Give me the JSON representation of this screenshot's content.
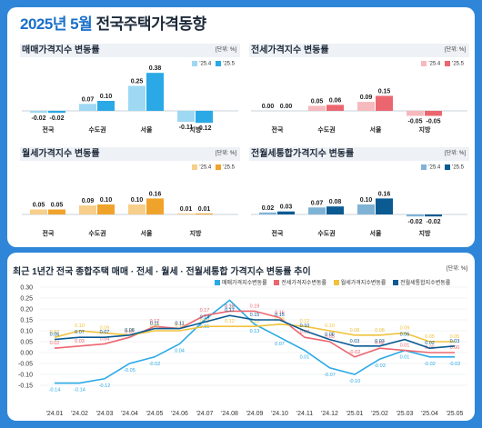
{
  "header": {
    "title_year_month": "2025년 5월",
    "title_rest": " 전국주택가격동향"
  },
  "chart_data": [
    {
      "type": "bar",
      "title": "매매가격지수 변동률",
      "unit": "[단위: %]",
      "categories": [
        "전국",
        "수도권",
        "서울",
        "지방"
      ],
      "series": [
        {
          "name": "'25.4",
          "values": [
            -0.02,
            0.07,
            0.25,
            -0.11
          ]
        },
        {
          "name": "'25.5",
          "values": [
            -0.02,
            0.1,
            0.38,
            -0.12
          ]
        }
      ],
      "colors": [
        "#9fd8f3",
        "#2aa9e6"
      ]
    },
    {
      "type": "bar",
      "title": "전세가격지수 변동률",
      "unit": "[단위: %]",
      "categories": [
        "전국",
        "수도권",
        "서울",
        "지방"
      ],
      "series": [
        {
          "name": "'25.4",
          "values": [
            0.0,
            0.05,
            0.09,
            -0.05
          ]
        },
        {
          "name": "'25.5",
          "values": [
            0.0,
            0.06,
            0.15,
            -0.05
          ]
        }
      ],
      "colors": [
        "#f6b9bd",
        "#ec6670"
      ]
    },
    {
      "type": "bar",
      "title": "월세가격지수 변동률",
      "unit": "[단위: %]",
      "categories": [
        "전국",
        "수도권",
        "서울",
        "지방"
      ],
      "series": [
        {
          "name": "'25.4",
          "values": [
            0.05,
            0.09,
            0.1,
            0.01
          ]
        },
        {
          "name": "'25.5",
          "values": [
            0.05,
            0.1,
            0.16,
            0.01
          ]
        }
      ],
      "colors": [
        "#f7cf8a",
        "#f0a32b"
      ]
    },
    {
      "type": "bar",
      "title": "전월세통합가격지수 변동률",
      "unit": "[단위: %]",
      "categories": [
        "전국",
        "수도권",
        "서울",
        "지방"
      ],
      "series": [
        {
          "name": "'25.4",
          "values": [
            0.02,
            0.07,
            0.1,
            -0.02
          ]
        },
        {
          "name": "'25.5",
          "values": [
            0.03,
            0.08,
            0.16,
            -0.02
          ]
        }
      ],
      "colors": [
        "#7fb3d6",
        "#0b5a92"
      ]
    },
    {
      "type": "line",
      "title": "최근 1년간 전국 종합주택 매매 · 전세 · 월세 · 전월세통합 가격지수 변동률 추이",
      "unit": "[단위: %]",
      "x": [
        "'24.01",
        "'24.02",
        "'24.03",
        "'24.04",
        "'24.05",
        "'24.06",
        "'24.07",
        "'24.08",
        "'24.09",
        "'24.10",
        "'24.11",
        "'24.12",
        "'25.01",
        "'25.02",
        "'25.03",
        "'25.04",
        "'25.05"
      ],
      "ylim": [
        -0.15,
        0.3
      ],
      "yticks": [
        "0.30",
        "0.25",
        "0.20",
        "0.15",
        "0.10",
        "0.05",
        "0.00",
        "-0.05",
        "-0.10",
        "-0.15"
      ],
      "series": [
        {
          "name": "매매가격지수변동률",
          "color": "#2aa9e6",
          "values": [
            -0.14,
            -0.14,
            -0.12,
            -0.05,
            -0.02,
            0.04,
            0.15,
            0.24,
            0.13,
            0.07,
            0.01,
            -0.07,
            -0.1,
            -0.03,
            0.01,
            -0.02,
            -0.02
          ]
        },
        {
          "name": "전세가격지수변동률",
          "color": "#ec6670",
          "values": [
            0.02,
            0.03,
            0.04,
            0.07,
            0.12,
            0.11,
            0.17,
            0.19,
            0.19,
            0.16,
            0.07,
            0.05,
            -0.02,
            0.02,
            0.01,
            0.0,
            0.0
          ]
        },
        {
          "name": "월세가격지수변동률",
          "color": "#f0c23b",
          "values": [
            0.07,
            0.1,
            0.09,
            0.08,
            0.1,
            0.1,
            0.12,
            0.12,
            0.12,
            0.13,
            0.12,
            0.1,
            0.08,
            0.08,
            0.09,
            0.05,
            0.05
          ]
        },
        {
          "name": "전월세통합지수변동률",
          "color": "#0b5a92",
          "values": [
            0.06,
            0.07,
            0.07,
            0.08,
            0.11,
            0.11,
            0.14,
            0.17,
            0.15,
            0.15,
            0.1,
            0.06,
            0.03,
            0.03,
            0.06,
            0.02,
            0.03
          ]
        }
      ]
    }
  ]
}
